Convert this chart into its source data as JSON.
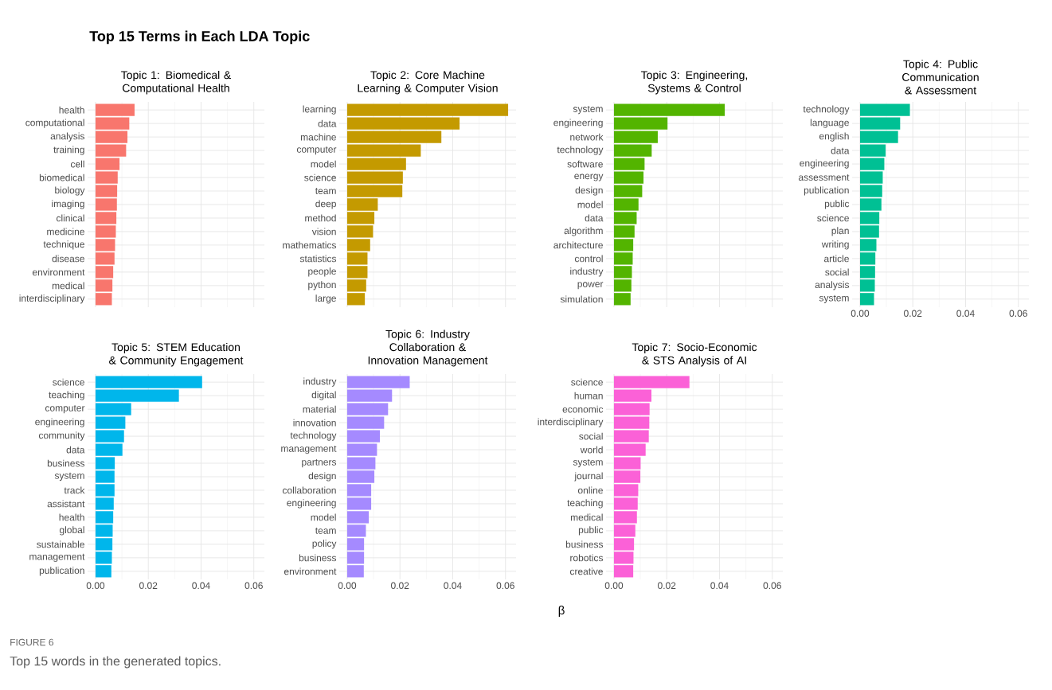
{
  "chart_data": [
    {
      "type": "bar",
      "orientation": "horizontal",
      "title": "Topic 1: Biomedical & Computational Health",
      "annotations": [
        "Top 15 Terms in Each LDA Topic",
        "FIGURE 6",
        "Top 15 words in the generated topics."
      ],
      "categories": [
        "health",
        "computational",
        "analysis",
        "training",
        "cell",
        "biomedical",
        "biology",
        "imaging",
        "clinical",
        "medicine",
        "technique",
        "disease",
        "environment",
        "medical",
        "interdisciplinary"
      ],
      "values": [
        0.0148,
        0.0128,
        0.0121,
        0.0116,
        0.0091,
        0.0084,
        0.0082,
        0.0081,
        0.0079,
        0.0077,
        0.0074,
        0.0072,
        0.0067,
        0.0064,
        0.0062
      ],
      "color": "#f8766d",
      "xlim": [
        -0.003,
        0.064
      ],
      "xticks": [
        {
          "value": 0,
          "label": null
        },
        {
          "value": 0.02,
          "label": null
        },
        {
          "value": 0.04,
          "label": null
        },
        {
          "value": 0.06,
          "label": null
        }
      ],
      "grid": true,
      "tick_labels": "y"
    },
    {
      "type": "bar",
      "orientation": "horizontal",
      "title": "Topic 2: Core Machine Learning & Computer Vision",
      "categories": [
        "learning",
        "data",
        "machine",
        "computer",
        "model",
        "science",
        "team",
        "deep",
        "method",
        "vision",
        "mathematics",
        "statistics",
        "people",
        "python",
        "large"
      ],
      "values": [
        0.061,
        0.0426,
        0.0357,
        0.0279,
        0.0223,
        0.0211,
        0.0209,
        0.0116,
        0.0103,
        0.0098,
        0.0087,
        0.0077,
        0.0077,
        0.0072,
        0.0067
      ],
      "color": "#c49a00",
      "xlim": [
        -0.003,
        0.064
      ],
      "xticks": [
        {
          "value": 0,
          "label": null
        },
        {
          "value": 0.02,
          "label": null
        },
        {
          "value": 0.04,
          "label": null
        },
        {
          "value": 0.06,
          "label": null
        }
      ],
      "grid": true,
      "tick_labels": "y"
    },
    {
      "type": "bar",
      "orientation": "horizontal",
      "title": "Topic 3: Engineering, Systems & Control",
      "categories": [
        "system",
        "engineering",
        "network",
        "technology",
        "software",
        "energy",
        "design",
        "model",
        "data",
        "algorithm",
        "architecture",
        "control",
        "industry",
        "power",
        "simulation"
      ],
      "values": [
        0.042,
        0.0203,
        0.0166,
        0.0143,
        0.0116,
        0.0112,
        0.0107,
        0.0093,
        0.0086,
        0.0078,
        0.0073,
        0.0071,
        0.0068,
        0.0066,
        0.0063
      ],
      "color": "#53b400",
      "xlim": [
        -0.003,
        0.064
      ],
      "xticks": [
        {
          "value": 0,
          "label": null
        },
        {
          "value": 0.02,
          "label": null
        },
        {
          "value": 0.04,
          "label": null
        },
        {
          "value": 0.06,
          "label": null
        }
      ],
      "grid": true,
      "tick_labels": "y"
    },
    {
      "type": "bar",
      "orientation": "horizontal",
      "title": "Topic 4: Public Communication & Assessment",
      "categories": [
        "technology",
        "language",
        "english",
        "data",
        "engineering",
        "assessment",
        "publication",
        "public",
        "science",
        "plan",
        "writing",
        "article",
        "social",
        "analysis",
        "system"
      ],
      "values": [
        0.0189,
        0.0152,
        0.0144,
        0.0097,
        0.0092,
        0.0086,
        0.0084,
        0.0081,
        0.0073,
        0.0072,
        0.0062,
        0.0058,
        0.0057,
        0.0056,
        0.0053
      ],
      "color": "#00c094",
      "xlim": [
        -0.003,
        0.064
      ],
      "xticks": [
        {
          "value": 0,
          "label": "0.00"
        },
        {
          "value": 0.02,
          "label": "0.02"
        },
        {
          "value": 0.04,
          "label": "0.04"
        },
        {
          "value": 0.06,
          "label": "0.06"
        }
      ],
      "grid": true
    },
    {
      "type": "bar",
      "orientation": "horizontal",
      "title": "Topic 5: STEM Education & Community Engagement",
      "categories": [
        "science",
        "teaching",
        "computer",
        "engineering",
        "community",
        "data",
        "business",
        "system",
        "track",
        "assistant",
        "health",
        "global",
        "sustainable",
        "management",
        "publication"
      ],
      "values": [
        0.0404,
        0.0316,
        0.0135,
        0.0113,
        0.0108,
        0.0102,
        0.0073,
        0.0072,
        0.0072,
        0.0069,
        0.0067,
        0.0065,
        0.0064,
        0.0062,
        0.006
      ],
      "color": "#00b6eb",
      "xlim": [
        -0.003,
        0.064
      ],
      "xticks": [
        {
          "value": 0,
          "label": "0.00"
        },
        {
          "value": 0.02,
          "label": "0.02"
        },
        {
          "value": 0.04,
          "label": "0.04"
        },
        {
          "value": 0.06,
          "label": "0.06"
        }
      ],
      "grid": true
    },
    {
      "type": "bar",
      "orientation": "horizontal",
      "title": "Topic 6: Industry Collaboration & Innovation Management",
      "xlabel": "β",
      "categories": [
        "industry",
        "digital",
        "material",
        "innovation",
        "technology",
        "management",
        "partners",
        "design",
        "collaboration",
        "engineering",
        "model",
        "team",
        "policy",
        "business",
        "environment"
      ],
      "values": [
        0.0237,
        0.017,
        0.0155,
        0.014,
        0.0124,
        0.0113,
        0.0107,
        0.0103,
        0.0091,
        0.0091,
        0.0082,
        0.0071,
        0.0064,
        0.0064,
        0.0063
      ],
      "color": "#a58aff",
      "xlim": [
        -0.003,
        0.064
      ],
      "xticks": [
        {
          "value": 0,
          "label": "0.00"
        },
        {
          "value": 0.02,
          "label": "0.02"
        },
        {
          "value": 0.04,
          "label": "0.04"
        },
        {
          "value": 0.06,
          "label": "0.06"
        }
      ],
      "grid": true
    },
    {
      "type": "bar",
      "orientation": "horizontal",
      "title": "Topic 7: Socio-Economic & STS Analysis of AI",
      "categories": [
        "science",
        "human",
        "economic",
        "interdisciplinary",
        "social",
        "world",
        "system",
        "journal",
        "online",
        "teaching",
        "medical",
        "public",
        "business",
        "robotics",
        "creative"
      ],
      "values": [
        0.0286,
        0.0142,
        0.0135,
        0.0134,
        0.0132,
        0.012,
        0.0101,
        0.01,
        0.0092,
        0.009,
        0.0087,
        0.0081,
        0.0076,
        0.0074,
        0.0073
      ],
      "color": "#fb61d7",
      "xlim": [
        -0.003,
        0.064
      ],
      "xticks": [
        {
          "value": 0,
          "label": "0.00"
        },
        {
          "value": 0.02,
          "label": "0.02"
        },
        {
          "value": 0.04,
          "label": "0.04"
        },
        {
          "value": 0.06,
          "label": "0.06"
        }
      ],
      "grid": true
    }
  ]
}
